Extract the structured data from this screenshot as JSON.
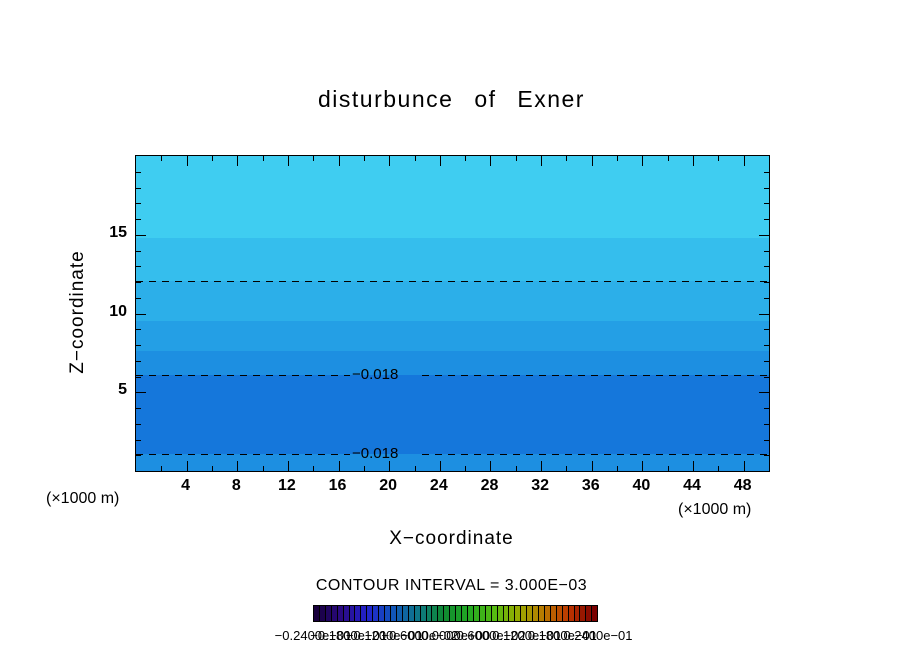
{
  "chart_data": {
    "type": "heatmap",
    "title": "disturbunce of Exner",
    "xlabel": "X−coordinate",
    "ylabel": "Z−coordinate",
    "x_unit_label_left": "(×1000 m)",
    "x_unit_label_right": "(×1000 m)",
    "xlim": [
      0,
      50
    ],
    "ylim": [
      0,
      20
    ],
    "x_major_ticks": [
      4,
      8,
      12,
      16,
      20,
      24,
      28,
      32,
      36,
      40,
      44,
      48
    ],
    "x_minor_step": 2,
    "y_major_ticks": [
      5,
      10,
      15
    ],
    "y_minor_step": 1,
    "contour_interval_text": "CONTOUR INTERVAL = 3.000E−03",
    "contour_interval": 0.003,
    "bands": [
      {
        "z_from": 14.8,
        "z_to": 20,
        "value_from": -0.006,
        "value_to": -0.003,
        "color": "#3FCDF1"
      },
      {
        "z_from": 12.05,
        "z_to": 14.8,
        "value_from": -0.009,
        "value_to": -0.006,
        "color": "#35BEED"
      },
      {
        "z_from": 9.5,
        "z_to": 12.05,
        "value_from": -0.012,
        "value_to": -0.009,
        "color": "#2CAFE9"
      },
      {
        "z_from": 7.6,
        "z_to": 9.5,
        "value_from": -0.015,
        "value_to": -0.012,
        "color": "#249FE5"
      },
      {
        "z_from": 6.1,
        "z_to": 7.6,
        "value_from": -0.018,
        "value_to": -0.015,
        "color": "#1D8FE1"
      },
      {
        "z_from": 1.1,
        "z_to": 6.1,
        "value_from": -0.021,
        "value_to": -0.018,
        "color": "#1577DB"
      },
      {
        "z_from": 0,
        "z_to": 1.1,
        "value_from": -0.018,
        "value_to": -0.015,
        "color": "#1D8FE1"
      }
    ],
    "contour_lines": [
      {
        "z": 12.05,
        "value": -0.009,
        "label": ""
      },
      {
        "z": 6.1,
        "value": -0.018,
        "label": "−0.018"
      },
      {
        "z": 1.1,
        "value": -0.018,
        "label": "−0.018"
      }
    ],
    "colorbar": {
      "cells": 48,
      "stops": [
        "#18003C",
        "#2A0A86",
        "#2222CC",
        "#1155BB",
        "#0E7788",
        "#0E8833",
        "#22AA22",
        "#55BB11",
        "#99AA00",
        "#BB7700",
        "#BB3300",
        "#7A0000"
      ],
      "labels": [
        "−0.2400e−01",
        "−0.1800e−01",
        "−0.1200e−01",
        "−0.6000e−02",
        "0.0000e+00",
        "0.6000e−02",
        "0.1200e−01",
        "0.1800e−01",
        "0.2400e−01"
      ]
    }
  }
}
